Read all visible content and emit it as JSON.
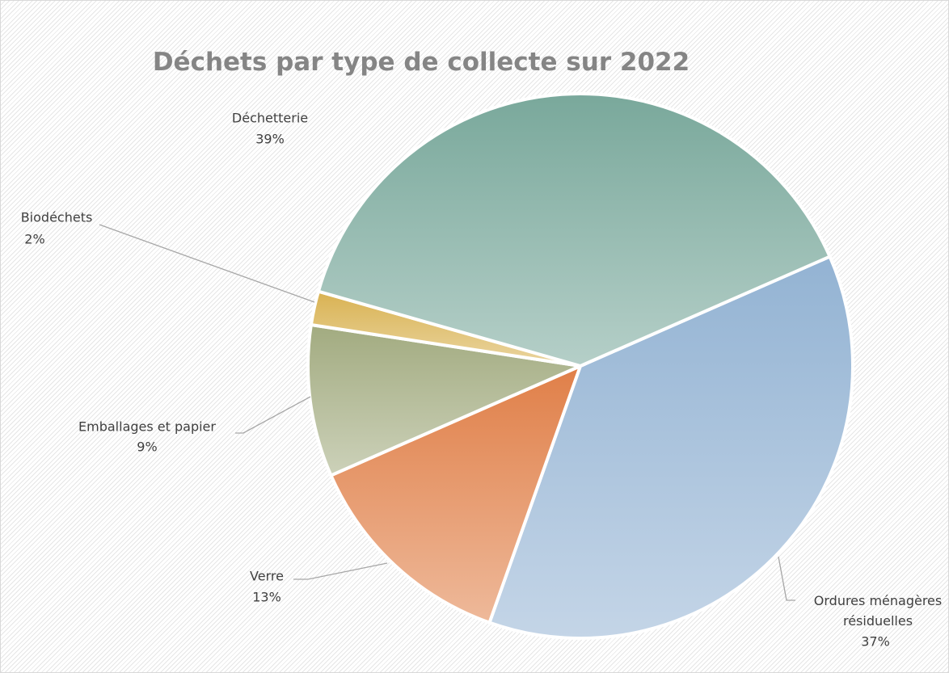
{
  "chart_data": {
    "type": "pie",
    "title": "Déchets par type de collecte sur 2022",
    "categories": [
      "Ordures ménagères résiduelles",
      "Verre",
      "Emballages et papier",
      "Biodéchets",
      "Déchetterie"
    ],
    "values": [
      37,
      13,
      9,
      2,
      39
    ],
    "value_labels": [
      "37%",
      "13%",
      "9%",
      "2%",
      "39%"
    ],
    "colors": [
      "#93b3d3",
      "#e07f48",
      "#a2ab80",
      "#d9b252",
      "#79a89b"
    ]
  }
}
